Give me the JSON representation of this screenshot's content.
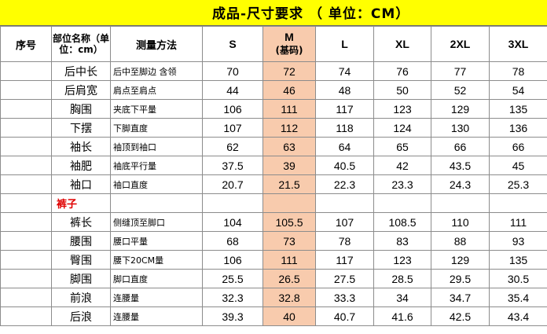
{
  "title": "成品-尺寸要求  （ 单位：CM）",
  "header": {
    "index": "序号",
    "part": "部位名称（单位：cm）",
    "method": "测量方法",
    "sizes": [
      "S",
      "M",
      "L",
      "XL",
      "2XL",
      "3XL"
    ],
    "base_note": "(基码)"
  },
  "rows": [
    {
      "part": "后中长",
      "method": "后中至脚边 含领",
      "values": [
        "70",
        "72",
        "74",
        "76",
        "77",
        "78"
      ]
    },
    {
      "part": "后肩宽",
      "method": "肩点至肩点",
      "values": [
        "44",
        "46",
        "48",
        "50",
        "52",
        "54"
      ]
    },
    {
      "part": "胸围",
      "method": "夹底下平量",
      "values": [
        "106",
        "111",
        "117",
        "123",
        "129",
        "135"
      ]
    },
    {
      "part": "下摆",
      "method": "下脚直度",
      "values": [
        "107",
        "112",
        "118",
        "124",
        "130",
        "136"
      ]
    },
    {
      "part": "袖长",
      "method": "袖顶到袖口",
      "values": [
        "62",
        "63",
        "64",
        "65",
        "66",
        "66"
      ]
    },
    {
      "part": "袖肥",
      "method": "袖底平行量",
      "values": [
        "37.5",
        "39",
        "40.5",
        "42",
        "43.5",
        "45"
      ]
    },
    {
      "part": "袖口",
      "method": "袖口直度",
      "values": [
        "20.7",
        "21.5",
        "22.3",
        "23.3",
        "24.3",
        "25.3"
      ]
    }
  ],
  "section_label": "裤子",
  "rows2": [
    {
      "part": "裤长",
      "method": "侧缝顶至脚口",
      "values": [
        "104",
        "105.5",
        "107",
        "108.5",
        "110",
        "111"
      ]
    },
    {
      "part": "腰围",
      "method": "腰口平量",
      "values": [
        "68",
        "73",
        "78",
        "83",
        "88",
        "93"
      ]
    },
    {
      "part": "臀围",
      "method": "腰下20CM量",
      "values": [
        "106",
        "111",
        "117",
        "123",
        "129",
        "135"
      ]
    },
    {
      "part": "脚围",
      "method": "脚口直度",
      "values": [
        "25.5",
        "26.5",
        "27.5",
        "28.5",
        "29.5",
        "30.5"
      ]
    },
    {
      "part": "前浪",
      "method": "连腰量",
      "values": [
        "32.3",
        "32.8",
        "33.3",
        "34",
        "34.7",
        "35.4"
      ]
    },
    {
      "part": "后浪",
      "method": "连腰量",
      "values": [
        "39.3",
        "40",
        "40.7",
        "41.6",
        "42.5",
        "43.4"
      ]
    }
  ],
  "colors": {
    "title_bg": "#ffff00",
    "base_column_bg": "#f8cbad",
    "section_text": "#e00000"
  }
}
